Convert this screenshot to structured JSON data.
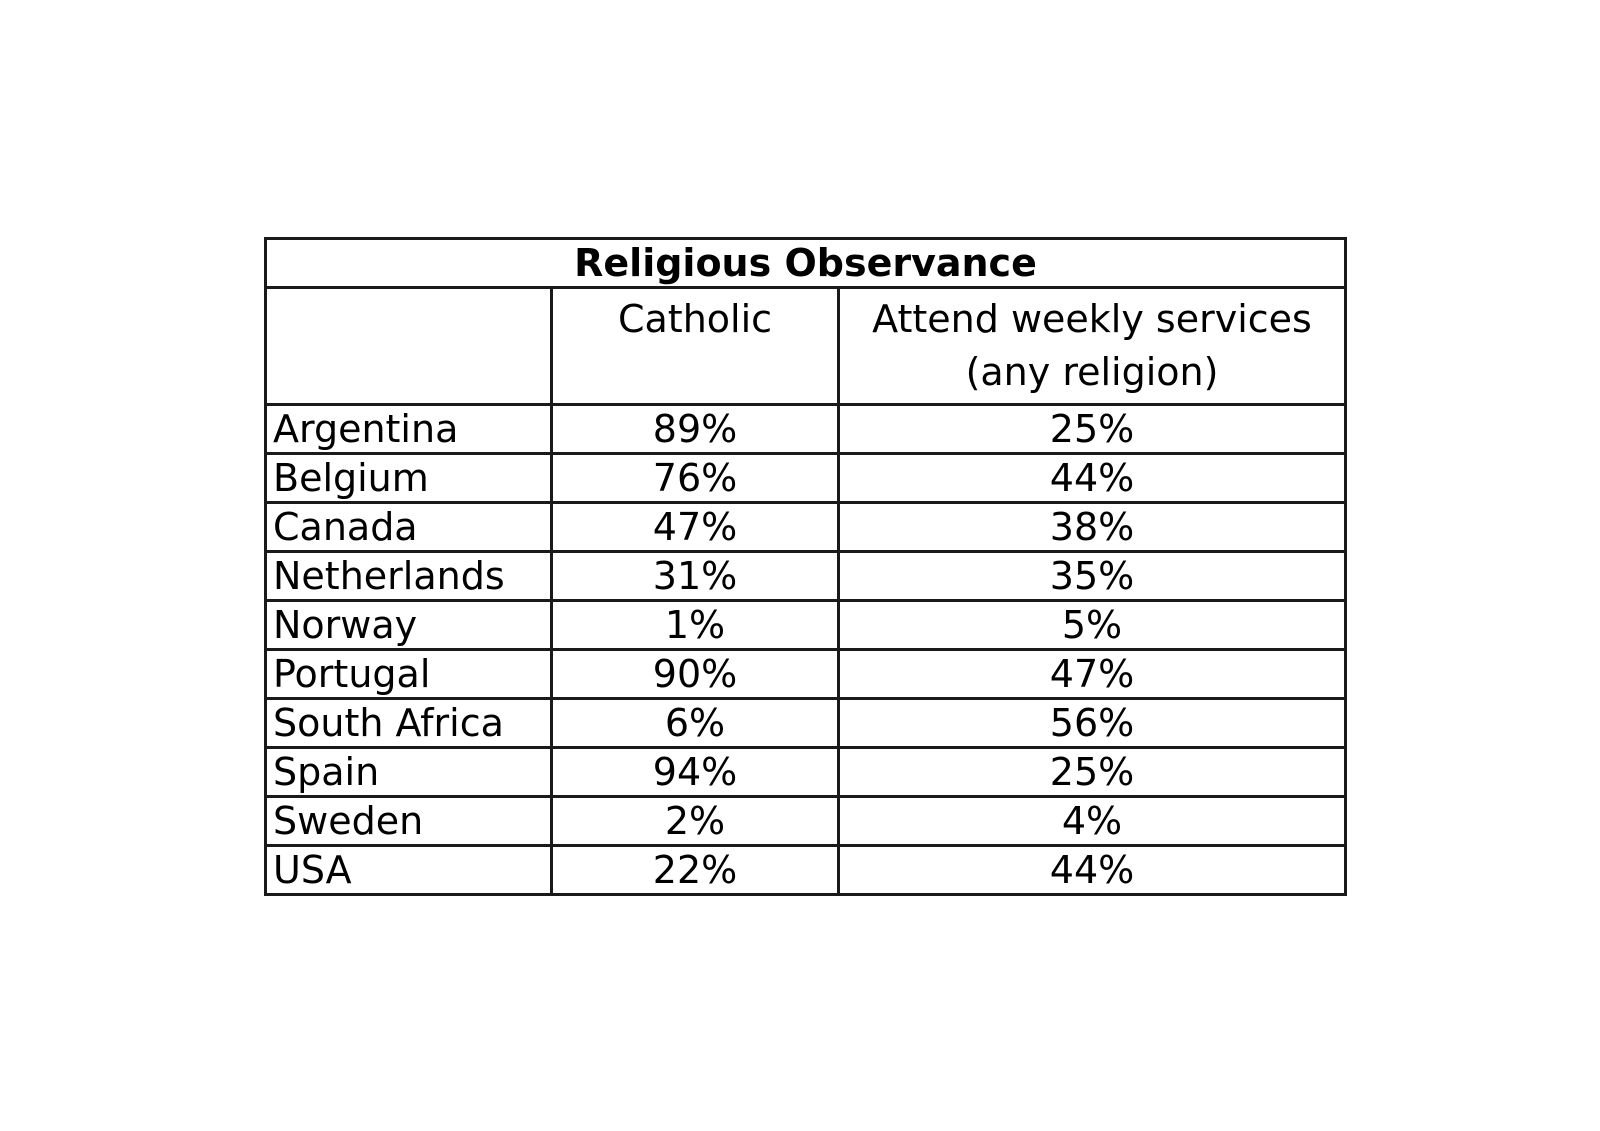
{
  "table": {
    "title": "Religious Observance",
    "columns": [
      "",
      "Catholic",
      "Attend weekly services (any religion)"
    ],
    "column_lines": {
      "catholic": [
        "Catholic"
      ],
      "weekly": [
        "Attend weekly services",
        "(any religion)"
      ]
    },
    "rows": [
      {
        "country": "Argentina",
        "catholic": "89%",
        "weekly": "25%"
      },
      {
        "country": "Belgium",
        "catholic": "76%",
        "weekly": "44%"
      },
      {
        "country": "Canada",
        "catholic": "47%",
        "weekly": "38%"
      },
      {
        "country": "Netherlands",
        "catholic": "31%",
        "weekly": "35%"
      },
      {
        "country": "Norway",
        "catholic": "1%",
        "weekly": "5%"
      },
      {
        "country": "Portugal",
        "catholic": "90%",
        "weekly": "47%"
      },
      {
        "country": "South Africa",
        "catholic": "6%",
        "weekly": "56%"
      },
      {
        "country": "Spain",
        "catholic": "94%",
        "weekly": "25%"
      },
      {
        "country": "Sweden",
        "catholic": "2%",
        "weekly": "4%"
      },
      {
        "country": "USA",
        "catholic": "22%",
        "weekly": "44%"
      }
    ]
  }
}
